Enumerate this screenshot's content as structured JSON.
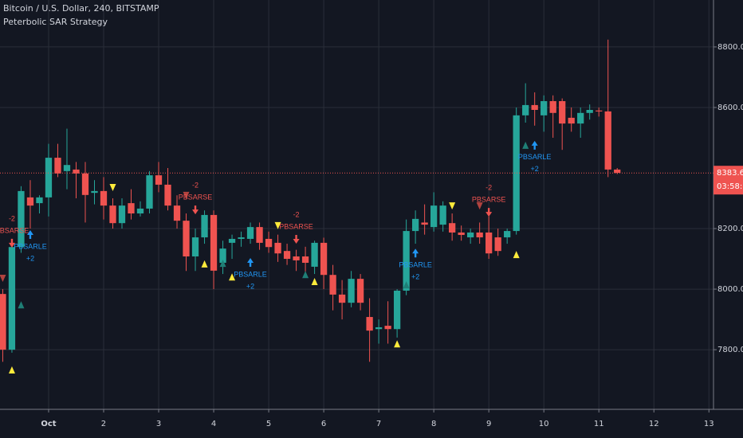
{
  "chart_data": {
    "type": "candlestick",
    "title": "Bitcoin / U.S. Dollar, 240, BITSTAMP",
    "subtitle": "Peterbolic SAR Strategy",
    "up_color": "#26a69a",
    "down_color": "#ef5350",
    "open": [
      7984,
      7800,
      8139,
      8303,
      8284,
      8303,
      8434,
      8390,
      8395,
      8382,
      8318,
      8324,
      8276,
      8218,
      8284,
      8250,
      8266,
      8376,
      8345,
      8276,
      8226,
      8108,
      8171,
      8245,
      8087,
      8153,
      8166,
      8166,
      8205,
      8166,
      8153,
      8126,
      8108,
      8108,
      8074,
      8153,
      8047,
      7982,
      7955,
      8034,
      7908,
      7868,
      7879,
      7868,
      7995,
      8192,
      8220,
      8205,
      8213,
      8218,
      8187,
      8171,
      8187,
      8187,
      8171,
      8171,
      8192,
      8574,
      8608,
      8574,
      8621,
      8621,
      8566,
      8547,
      8582,
      8590,
      8587,
      8395
    ],
    "high": [
      8000,
      8150,
      8340,
      8360,
      8310,
      8480,
      8480,
      8530,
      8420,
      8420,
      8360,
      8370,
      8300,
      8300,
      8330,
      8290,
      8390,
      8420,
      8400,
      8310,
      8250,
      8200,
      8260,
      8260,
      8160,
      8180,
      8190,
      8220,
      8220,
      8190,
      8180,
      8150,
      8130,
      8140,
      8160,
      8170,
      8080,
      8030,
      8060,
      8050,
      7970,
      7900,
      7960,
      8000,
      8230,
      8260,
      8280,
      8320,
      8290,
      8250,
      8210,
      8200,
      8220,
      8240,
      8200,
      8200,
      8600,
      8680,
      8650,
      8640,
      8640,
      8630,
      8600,
      8600,
      8610,
      8600,
      8824,
      8400
    ],
    "low": [
      7760,
      7790,
      8120,
      8200,
      8250,
      8240,
      8370,
      8330,
      8300,
      8220,
      8280,
      8230,
      8200,
      8200,
      8230,
      8240,
      8250,
      8320,
      8260,
      8200,
      8060,
      8060,
      8150,
      8000,
      8050,
      8100,
      8140,
      8150,
      8130,
      8120,
      8090,
      8080,
      8060,
      8050,
      8050,
      8000,
      7930,
      7900,
      7940,
      7930,
      7760,
      7820,
      7820,
      7840,
      7980,
      8150,
      8180,
      8190,
      8190,
      8160,
      8160,
      8150,
      8150,
      8100,
      8110,
      8150,
      8180,
      8550,
      8540,
      8520,
      8500,
      8460,
      8520,
      8500,
      8560,
      8570,
      8370,
      8380
    ],
    "close": [
      7800,
      8139,
      8324,
      8276,
      8303,
      8434,
      8382,
      8410,
      8382,
      8311,
      8324,
      8276,
      8218,
      8276,
      8250,
      8266,
      8376,
      8345,
      8276,
      8226,
      8108,
      8171,
      8245,
      8061,
      8134,
      8166,
      8171,
      8205,
      8153,
      8139,
      8118,
      8100,
      8095,
      8087,
      8153,
      8047,
      7982,
      7955,
      8034,
      7955,
      7863,
      7874,
      7868,
      7995,
      8192,
      8232,
      8213,
      8276,
      8276,
      8187,
      8179,
      8187,
      8171,
      8118,
      8126,
      8192,
      8574,
      8608,
      8592,
      8621,
      8582,
      8547,
      8547,
      8582,
      8592,
      8587,
      8395,
      8384
    ],
    "xlim": [
      -0.3,
      77.5
    ],
    "xticks": [
      {
        "value": 5,
        "label": "Oct"
      },
      {
        "value": 11,
        "label": "2"
      },
      {
        "value": 17,
        "label": "3"
      },
      {
        "value": 23,
        "label": "4"
      },
      {
        "value": 29,
        "label": "5"
      },
      {
        "value": 35,
        "label": "6"
      },
      {
        "value": 41,
        "label": "7"
      },
      {
        "value": 47,
        "label": "8"
      },
      {
        "value": 53,
        "label": "9"
      },
      {
        "value": 59,
        "label": "10"
      },
      {
        "value": 65,
        "label": "11"
      },
      {
        "value": 71,
        "label": "12"
      },
      {
        "value": 77,
        "label": "13"
      }
    ],
    "ylim": [
      7603,
      8955
    ],
    "yticks": [
      {
        "value": 7800,
        "label": "7800.00"
      },
      {
        "value": 8000,
        "label": "8000.00"
      },
      {
        "value": 8200,
        "label": "8200.00"
      },
      {
        "value": 8600,
        "label": "8600.00"
      },
      {
        "value": 8800,
        "label": "8800.00"
      }
    ],
    "grid": true,
    "last_price": 8383.66,
    "countdown": "03:58:25",
    "signals": [
      {
        "index": 1,
        "price": 8153,
        "label": "PBSARSE",
        "qty": "-2"
      },
      {
        "index": 3,
        "price": 8179,
        "label": "PBSARLE",
        "qty": "+2"
      },
      {
        "index": 21,
        "price": 8263,
        "label": "PBSARSE",
        "qty": "-2"
      },
      {
        "index": 27,
        "price": 8087,
        "label": "PBSARLE",
        "qty": "+2"
      },
      {
        "index": 32,
        "price": 8166,
        "label": "PBSARSE",
        "qty": "-2"
      },
      {
        "index": 45,
        "price": 8118,
        "label": "PBSARLE",
        "qty": "+2"
      },
      {
        "index": 53,
        "price": 8255,
        "label": "PBSARSE",
        "qty": "-2"
      },
      {
        "index": 58,
        "price": 8474,
        "label": "PBSARLE",
        "qty": "+2"
      }
    ],
    "sar": [
      {
        "index": 0,
        "price": 8037,
        "dir": "down",
        "color": "#b2433f"
      },
      {
        "index": 1,
        "price": 7732,
        "dir": "up",
        "color": "#ffeb3b"
      },
      {
        "index": 2,
        "price": 7947,
        "dir": "up",
        "color": "#1f7f76"
      },
      {
        "index": 12,
        "price": 8337,
        "dir": "down",
        "color": "#ffeb3b"
      },
      {
        "index": 20,
        "price": 8311,
        "dir": "down",
        "color": "#b2433f"
      },
      {
        "index": 22,
        "price": 8082,
        "dir": "up",
        "color": "#ffeb3b"
      },
      {
        "index": 24,
        "price": 8084,
        "dir": "up",
        "color": "#1f7f76"
      },
      {
        "index": 25,
        "price": 8039,
        "dir": "up",
        "color": "#ffeb3b"
      },
      {
        "index": 30,
        "price": 8211,
        "dir": "down",
        "color": "#ffeb3b"
      },
      {
        "index": 33,
        "price": 8047,
        "dir": "up",
        "color": "#1f7f76"
      },
      {
        "index": 34,
        "price": 8024,
        "dir": "up",
        "color": "#ffeb3b"
      },
      {
        "index": 43,
        "price": 7818,
        "dir": "up",
        "color": "#ffeb3b"
      },
      {
        "index": 44,
        "price": 8013,
        "dir": "up",
        "color": "#1f7f76"
      },
      {
        "index": 49,
        "price": 8276,
        "dir": "down",
        "color": "#ffeb3b"
      },
      {
        "index": 52,
        "price": 8276,
        "dir": "down",
        "color": "#b2433f"
      },
      {
        "index": 56,
        "price": 8113,
        "dir": "up",
        "color": "#ffeb3b"
      },
      {
        "index": 57,
        "price": 8474,
        "dir": "up",
        "color": "#1f7f76"
      }
    ]
  }
}
